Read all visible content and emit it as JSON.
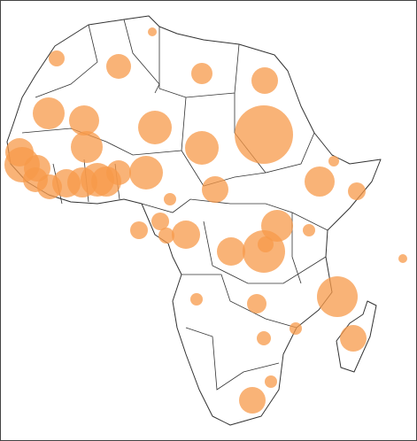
{
  "chart_data": {
    "type": "bubble",
    "color": "#f79a4a",
    "opacity": 0.75,
    "values": [
      25,
      81,
      196,
      144,
      225,
      324,
      289,
      361,
      1089,
      361,
      324,
      256,
      400,
      225,
      196,
      196,
      256,
      289,
      361,
      289,
      361,
      196,
      36,
      289,
      100,
      225,
      49,
      100,
      100,
      81,
      256,
      324,
      49,
      256,
      576,
      81,
      25,
      529,
      49,
      121,
      49,
      64,
      225,
      49,
      225
    ]
  }
}
